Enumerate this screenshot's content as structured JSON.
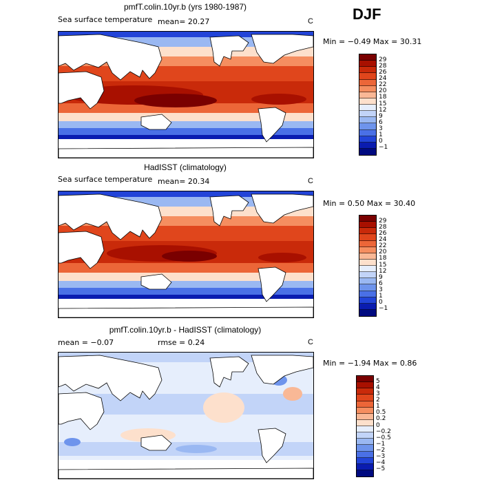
{
  "season": "DJF",
  "panels": [
    {
      "title": "pmfT.colin.10yr.b (yrs 1980-1987)",
      "field": "Sea surface temperature",
      "stat1": "mean=  20.27",
      "stat2": "",
      "unit": "C",
      "minmax": "Min =  −0.49 Max =   30.31",
      "colorbar": {
        "labels": [
          "29",
          "28",
          "26",
          "24",
          "22",
          "20",
          "18",
          "15",
          "12",
          "9",
          "6",
          "3",
          "1",
          "0",
          "−1"
        ],
        "colors": [
          "#7a0000",
          "#a81000",
          "#c92a0a",
          "#e0461c",
          "#ec6638",
          "#f58e60",
          "#f9b896",
          "#fde0cc",
          "#e6eefc",
          "#c2d4f8",
          "#9ab8f2",
          "#6e94ec",
          "#4a70e6",
          "#2244d8",
          "#0a1cb0",
          "#000a80"
        ]
      }
    },
    {
      "title": "HadISST (climatology)",
      "field": "Sea surface temperature",
      "stat1": "mean=  20.34",
      "stat2": "",
      "unit": "C",
      "minmax": "Min =   0.50 Max =  30.40",
      "colorbar": {
        "labels": [
          "29",
          "28",
          "26",
          "24",
          "22",
          "20",
          "18",
          "15",
          "12",
          "9",
          "6",
          "3",
          "1",
          "0",
          "−1"
        ],
        "colors": [
          "#7a0000",
          "#a81000",
          "#c92a0a",
          "#e0461c",
          "#ec6638",
          "#f58e60",
          "#f9b896",
          "#fde0cc",
          "#e6eefc",
          "#c2d4f8",
          "#9ab8f2",
          "#6e94ec",
          "#4a70e6",
          "#2244d8",
          "#0a1cb0",
          "#000a80"
        ]
      }
    },
    {
      "title": "pmfT.colin.10yr.b - HadISST (climatology)",
      "field": "",
      "stat1": "mean =   −0.07",
      "stat2": "rmse =    0.24",
      "unit": "C",
      "minmax": "Min =  −1.94 Max =    0.86",
      "colorbar": {
        "labels": [
          "5",
          "4",
          "3",
          "2",
          "1",
          "0.5",
          "0.2",
          "0",
          "−0.2",
          "−0.5",
          "−1",
          "−2",
          "−3",
          "−4",
          "−5"
        ],
        "colors": [
          "#7a0000",
          "#a81000",
          "#c92a0a",
          "#e0461c",
          "#ec6638",
          "#f58e60",
          "#f9b896",
          "#fde0cc",
          "#e6eefc",
          "#c2d4f8",
          "#9ab8f2",
          "#6e94ec",
          "#4a70e6",
          "#2244d8",
          "#0a1cb0",
          "#000a80"
        ]
      }
    }
  ]
}
